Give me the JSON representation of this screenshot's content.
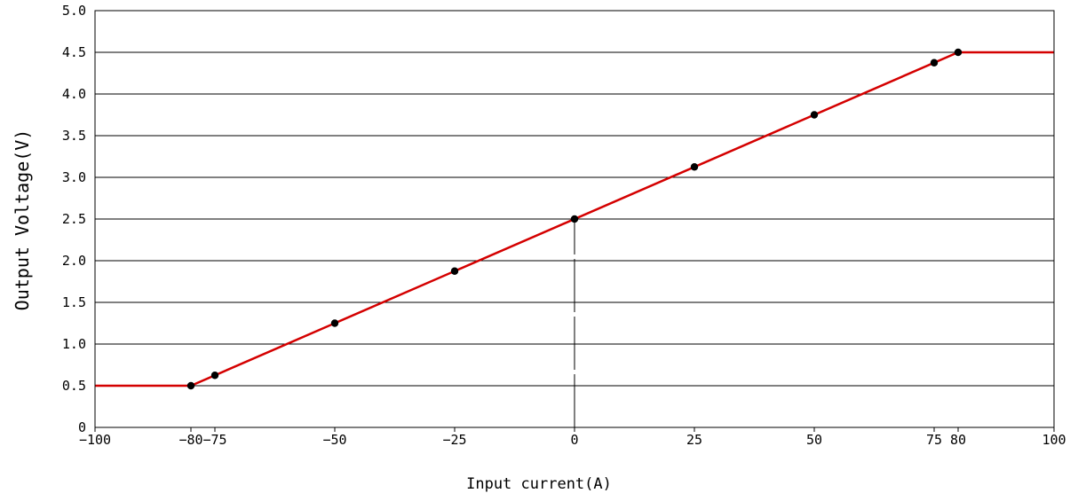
{
  "chart_data": {
    "type": "line",
    "title": "",
    "xlabel": "Input current(A)",
    "ylabel": "Output Voltage(V)",
    "xlim": [
      -100,
      100
    ],
    "ylim": [
      0,
      5
    ],
    "x_ticks": [
      -100,
      -80,
      -75,
      -50,
      -25,
      0,
      25,
      50,
      75,
      80,
      100
    ],
    "x_tick_labels": [
      "−100",
      "−80",
      "−75",
      "−50",
      "−25",
      "0",
      "25",
      "50",
      "75",
      "80",
      "100"
    ],
    "y_ticks": [
      0,
      0.5,
      1.0,
      1.5,
      2.0,
      2.5,
      3.0,
      3.5,
      4.0,
      4.5,
      5.0
    ],
    "y_tick_labels": [
      "0",
      "0.5",
      "1.0",
      "1.5",
      "2.0",
      "2.5",
      "3.0",
      "3.5",
      "4.0",
      "4.5",
      "5.0"
    ],
    "grid": "horizontal",
    "series": [
      {
        "color": "#d40000",
        "x": [
          -100,
          -80,
          80,
          100
        ],
        "y": [
          0.5,
          0.5,
          4.5,
          4.5
        ],
        "markers": {
          "color": "#000000",
          "x": [
            -80,
            -75,
            -50,
            -25,
            0,
            25,
            50,
            75,
            80
          ],
          "y": [
            0.5,
            0.625,
            1.25,
            1.875,
            2.5,
            3.125,
            3.75,
            4.375,
            4.5
          ]
        }
      }
    ],
    "reference_line": {
      "x": 0,
      "y_from": 0,
      "y_to": 2.5,
      "style": "dashed"
    }
  }
}
